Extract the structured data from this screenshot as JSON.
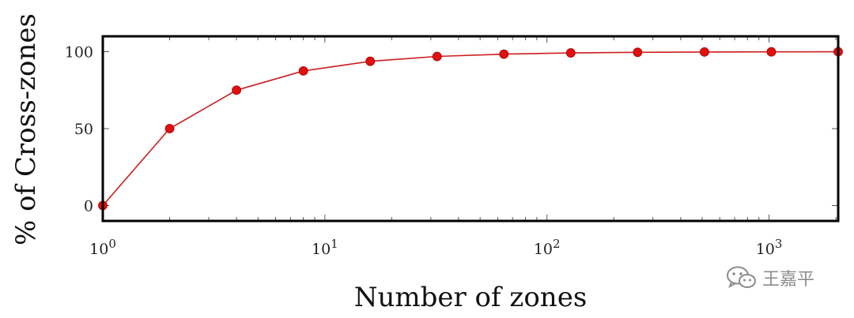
{
  "chart_data": {
    "type": "line",
    "xscale": "log2-points-on-log10-axis",
    "x": [
      1,
      2,
      4,
      8,
      16,
      32,
      64,
      128,
      256,
      512,
      1024,
      2048
    ],
    "series": [
      {
        "values": [
          0,
          50,
          75,
          87.5,
          93.75,
          96.9,
          98.4,
          99.2,
          99.6,
          99.8,
          99.9,
          99.95
        ]
      }
    ],
    "xlim": [
      1,
      2048
    ],
    "ylim": [
      -10,
      110
    ],
    "yticks": [
      0,
      50,
      100
    ],
    "xticks": [
      {
        "value": 1,
        "base": "10",
        "exp": "0"
      },
      {
        "value": 10,
        "base": "10",
        "exp": "1"
      },
      {
        "value": 100,
        "base": "10",
        "exp": "2"
      },
      {
        "value": 1000,
        "base": "10",
        "exp": "3"
      }
    ],
    "xlabel": "Number of zones",
    "ylabel": "% of Cross-zones",
    "line_color": "#cc1f1f",
    "marker_color": "#e01010",
    "grid": false,
    "legend": "none"
  },
  "watermark": {
    "text": "王嘉平",
    "icon": "wechat-icon",
    "color": "#8c8c8c"
  }
}
